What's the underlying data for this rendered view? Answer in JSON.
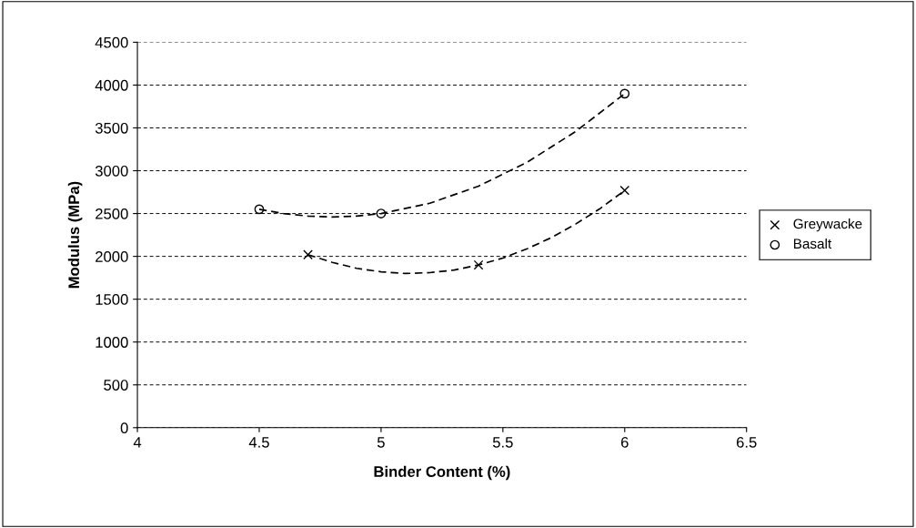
{
  "chart_data": {
    "type": "scatter",
    "xlabel": "Binder Content (%)",
    "ylabel": "Modulus (MPa)",
    "xlim": [
      4,
      6.5
    ],
    "xticks": [
      4,
      4.5,
      5,
      5.5,
      6,
      6.5
    ],
    "ylim": [
      0,
      4500
    ],
    "yticks": [
      0,
      500,
      1000,
      1500,
      2000,
      2500,
      3000,
      3500,
      4000,
      4500
    ],
    "grid": "y",
    "legend": "right",
    "series": [
      {
        "name": "Greywacke",
        "marker": "cross",
        "color": "#000000",
        "x": [
          4.7,
          5.4,
          6.0
        ],
        "values": [
          2020,
          1900,
          2770
        ]
      },
      {
        "name": "Basalt",
        "marker": "circle",
        "color": "#000000",
        "x": [
          4.5,
          5.0,
          6.0
        ],
        "values": [
          2550,
          2500,
          3900
        ]
      },
      {
        "type": "line",
        "line_style": "dashed",
        "color": "#000000",
        "x": [
          4.7,
          4.8,
          4.9,
          5.0,
          5.1,
          5.2,
          5.3,
          5.4,
          5.5,
          5.6,
          5.7,
          5.8,
          5.9,
          6.0
        ],
        "values": [
          2020,
          1930,
          1860,
          1820,
          1800,
          1810,
          1840,
          1900,
          1980,
          2090,
          2220,
          2380,
          2560,
          2770
        ]
      },
      {
        "type": "line",
        "line_style": "dashed",
        "color": "#000000",
        "x": [
          4.5,
          4.6,
          4.7,
          4.8,
          4.9,
          5.0,
          5.2,
          5.4,
          5.6,
          5.8,
          6.0
        ],
        "values": [
          2550,
          2500,
          2470,
          2460,
          2470,
          2500,
          2620,
          2820,
          3100,
          3460,
          3900
        ]
      }
    ]
  }
}
